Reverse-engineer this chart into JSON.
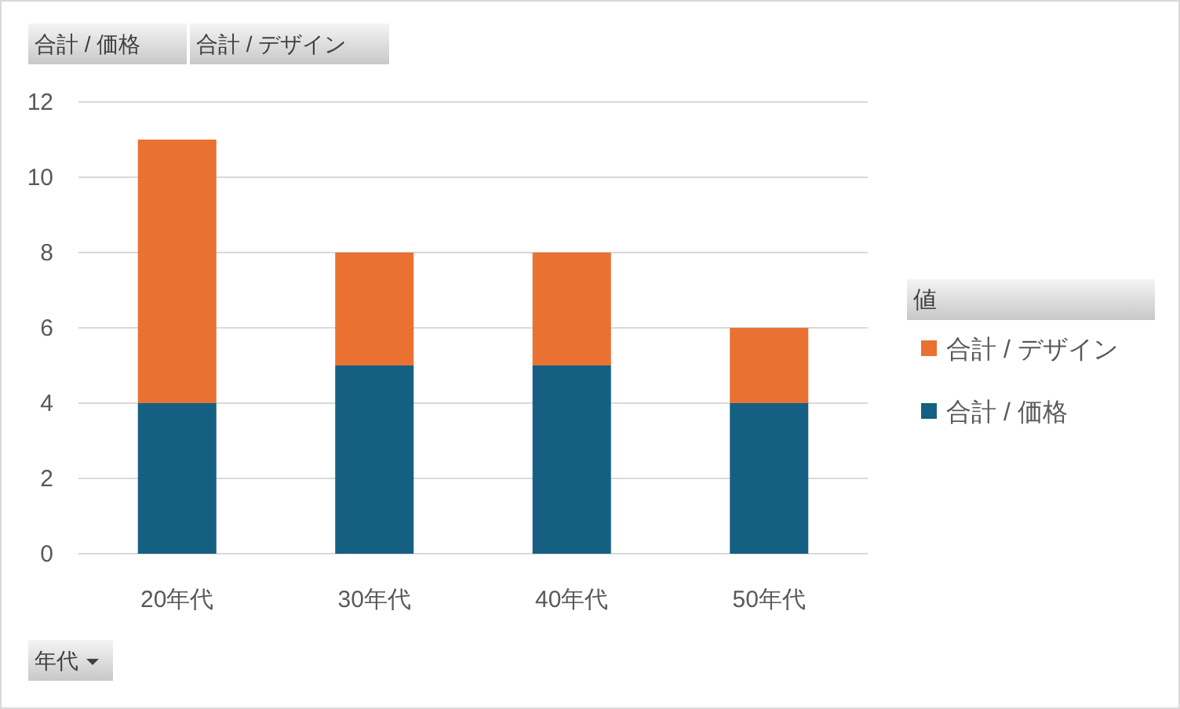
{
  "chart_data": {
    "type": "bar",
    "stacked": true,
    "categories": [
      "20年代",
      "30年代",
      "40年代",
      "50年代"
    ],
    "series": [
      {
        "name": "合計 / 価格",
        "color": "#156082",
        "values": [
          4,
          5,
          5,
          4
        ]
      },
      {
        "name": "合計 / デザイン",
        "color": "#e97132",
        "values": [
          7,
          3,
          3,
          2
        ]
      }
    ],
    "ylim": [
      0,
      12
    ],
    "yticks": [
      0,
      2,
      4,
      6,
      8,
      10,
      12
    ],
    "grid": "y",
    "legend": "right",
    "legend_title": "値",
    "xlabel": "年代",
    "annotations": [
      "合計 / 価格",
      "合計 / デザイン"
    ]
  }
}
